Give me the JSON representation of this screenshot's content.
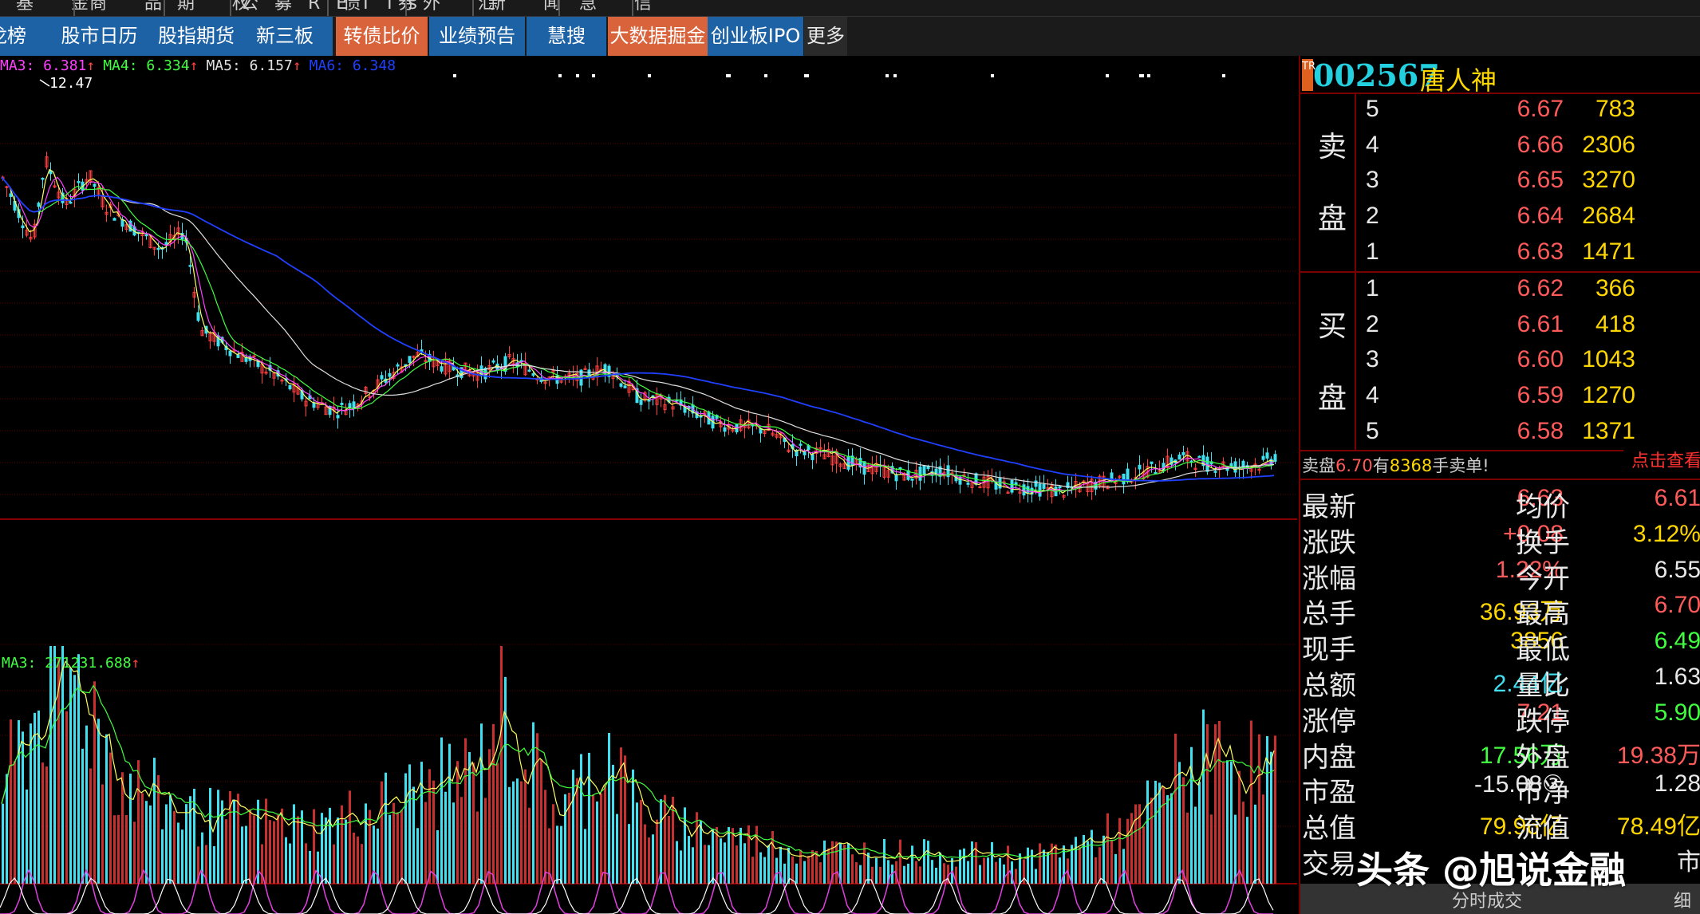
{
  "top_menu": [
    "基 金",
    "商 品",
    "期 权",
    "公募REITs",
    "债 券",
    "外 汇",
    "新 闻",
    "急 信"
  ],
  "nav": [
    {
      "label": "龙榜",
      "style": "blue"
    },
    {
      "label": "股市日历",
      "style": "blue"
    },
    {
      "label": "股指期货",
      "style": "blue"
    },
    {
      "label": "新三板",
      "style": "blue"
    },
    {
      "label": "转债比价",
      "style": "orange"
    },
    {
      "label": "业绩预告",
      "style": "blue"
    },
    {
      "label": "慧搜",
      "style": "blue"
    },
    {
      "label": "大数据掘金",
      "style": "orange"
    },
    {
      "label": "创业板IPO",
      "style": "blue"
    },
    {
      "label": "更多",
      "style": "gray"
    }
  ],
  "ma_legend": [
    {
      "text": "MA3: 6.381",
      "color": "#ff40ff"
    },
    {
      "text": "MA4: 6.334",
      "color": "#40ff40"
    },
    {
      "text": "MA5: 6.157",
      "color": "#e0e0e0"
    },
    {
      "text": "MA6: 6.348",
      "color": "#2040ff"
    }
  ],
  "peak_label": "12.47",
  "vol_legend": "MA3: 271231.688",
  "colors": {
    "up": "#ff4040",
    "down": "#40e0f0",
    "grid": "#7a0000",
    "accent": "#ffd700"
  },
  "stock": {
    "tag": "TR",
    "code": "002567",
    "name": "唐人神"
  },
  "order_book": {
    "sell_label": [
      "卖",
      "盘"
    ],
    "buy_label": [
      "买",
      "盘"
    ],
    "sell": [
      {
        "level": "5",
        "price": "6.67",
        "volume": "783"
      },
      {
        "level": "4",
        "price": "6.66",
        "volume": "2306"
      },
      {
        "level": "3",
        "price": "6.65",
        "volume": "3270"
      },
      {
        "level": "2",
        "price": "6.64",
        "volume": "2684"
      },
      {
        "level": "1",
        "price": "6.63",
        "volume": "1471"
      }
    ],
    "buy": [
      {
        "level": "1",
        "price": "6.62",
        "volume": "366"
      },
      {
        "level": "2",
        "price": "6.61",
        "volume": "418"
      },
      {
        "level": "3",
        "price": "6.60",
        "volume": "1043"
      },
      {
        "level": "4",
        "price": "6.59",
        "volume": "1270"
      },
      {
        "level": "5",
        "price": "6.58",
        "volume": "1371"
      }
    ]
  },
  "notice": {
    "prefix": "卖盘",
    "price": "6.70",
    "mid": "有",
    "qty": "8368",
    "suffix": "手卖单!",
    "button": "点击查看"
  },
  "quote": [
    {
      "l": "最新",
      "v": "6.63",
      "c": "#ff5a5a",
      "l2": "均价",
      "v2": "6.61",
      "c2": "#ff5a5a"
    },
    {
      "l": "涨跌",
      "v": "+0.08",
      "c": "#ff5a5a",
      "l2": "换手",
      "v2": "3.12%",
      "c2": "#ffd700"
    },
    {
      "l": "涨幅",
      "v": "1.22%",
      "c": "#ff5a5a",
      "l2": "今开",
      "v2": "6.55",
      "c2": "#e8e8e8"
    },
    {
      "l": "总手",
      "v": "36.93万",
      "c": "#ffd700",
      "l2": "最高",
      "v2": "6.70",
      "c2": "#ff5a5a"
    },
    {
      "l": "现手",
      "v": "3856",
      "c": "#ffd700",
      "l2": "最低",
      "v2": "6.49",
      "c2": "#40ff40"
    },
    {
      "l": "总额",
      "v": "2.44亿",
      "c": "#40e0f0",
      "l2": "量比",
      "v2": "1.63",
      "c2": "#e8e8e8"
    },
    {
      "l": "涨停",
      "v": "7.21",
      "c": "#ff5a5a",
      "l2": "跌停",
      "v2": "5.90",
      "c2": "#40ff40"
    },
    {
      "l": "内盘",
      "v": "17.56万",
      "c": "#40ff40",
      "l2": "外盘",
      "v2": "19.38万",
      "c2": "#ff5a5a"
    },
    {
      "l": "市盈",
      "v": "-15.08③",
      "c": "#e8e8e8",
      "l2": "市净",
      "v2": "1.28",
      "c2": "#e8e8e8"
    },
    {
      "l": "总值",
      "v": "79.96亿",
      "c": "#ffd700",
      "l2": "流值",
      "v2": "78.49亿",
      "c2": "#ffd700"
    },
    {
      "l": "交易",
      "v": "",
      "c": "#e8e8e8",
      "l2": "",
      "v2": "市",
      "c2": "#e8e8e8"
    }
  ],
  "bottom_tabs": {
    "tab1": "分时成交",
    "tab2": "细"
  },
  "watermark": "头条 @旭说金融"
}
